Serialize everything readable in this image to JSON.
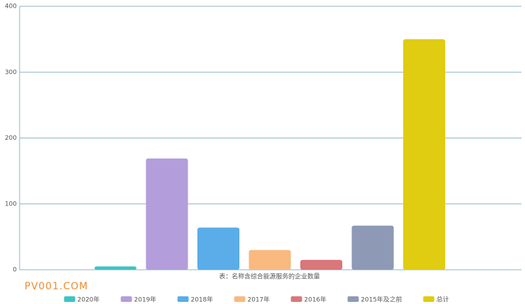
{
  "chart_data": {
    "type": "bar",
    "x_label": "表：名称含综合能源服务的企业数量",
    "watermark": "PV001.COM",
    "series": [
      {
        "name": "2020年",
        "color": "#3cc4c4",
        "values": [
          5
        ]
      },
      {
        "name": "2019年",
        "color": "#b39ddb",
        "values": [
          169
        ]
      },
      {
        "name": "2018年",
        "color": "#5aade8",
        "values": [
          64
        ]
      },
      {
        "name": "2017年",
        "color": "#f9b97f",
        "values": [
          30
        ]
      },
      {
        "name": "2016年",
        "color": "#d9777a",
        "values": [
          15
        ]
      },
      {
        "name": "2015年及之前",
        "color": "#8e9ab5",
        "values": [
          67
        ]
      },
      {
        "name": "总计",
        "color": "#e0cc10",
        "values": [
          350
        ]
      }
    ],
    "ylim": [
      0,
      400
    ],
    "yticks": [
      0,
      100,
      200,
      300,
      400
    ],
    "grid": true
  }
}
